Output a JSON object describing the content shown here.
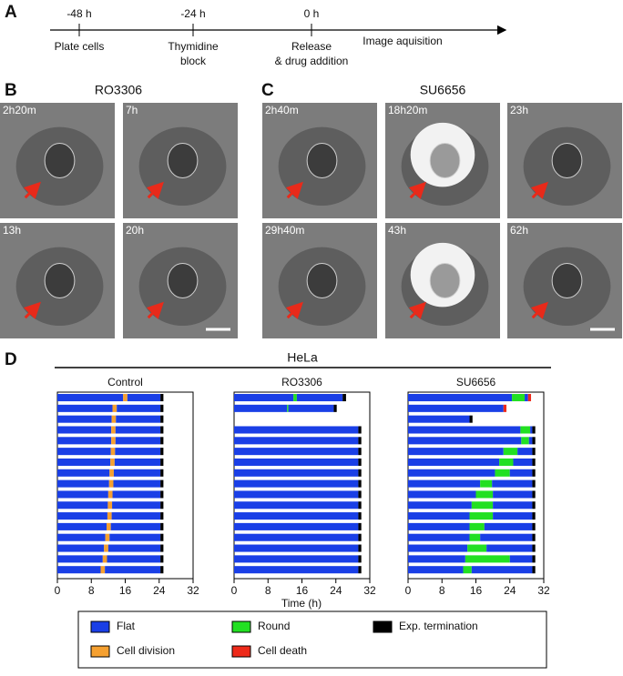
{
  "panel_labels": [
    "A",
    "B",
    "C",
    "D"
  ],
  "timeline": {
    "events": [
      {
        "time": "-48 h",
        "lines": [
          "Plate cells"
        ]
      },
      {
        "time": "-24 h",
        "lines": [
          "Thymidine",
          "block"
        ]
      },
      {
        "time": "0 h",
        "lines": [
          "Release",
          "& drug addition"
        ]
      }
    ],
    "end_label": "Image aquisition"
  },
  "panel_b": {
    "title": "RO3306",
    "frames": [
      "2h20m",
      "7h",
      "13h",
      "20h"
    ]
  },
  "panel_c": {
    "title": "SU6656",
    "frames": [
      "2h40m",
      "18h20m",
      "23h",
      "29h40m",
      "43h",
      "62h"
    ]
  },
  "chart_data": {
    "type": "timeline",
    "group": "HeLa",
    "xlabel": "Time (h)",
    "xlim": [
      0,
      32
    ],
    "xticks": [
      0,
      8,
      16,
      24,
      32
    ],
    "legend": [
      {
        "name": "Flat",
        "color": "#1a3fe6"
      },
      {
        "name": "Round",
        "color": "#22e022"
      },
      {
        "name": "Exp. termination",
        "color": "#000000"
      },
      {
        "name": "Cell division",
        "color": "#f5a030"
      },
      {
        "name": "Cell death",
        "color": "#ee2a1a"
      }
    ],
    "panels": [
      {
        "title": "Control",
        "rows": [
          [
            [
              0,
              15.5
            ],
            [
              3,
              1
            ],
            [
              0,
              7.8
            ],
            [
              2,
              0.7
            ]
          ],
          [
            [
              0,
              13.0
            ],
            [
              3,
              1
            ],
            [
              0,
              10.3
            ],
            [
              2,
              0.7
            ]
          ],
          [
            [
              0,
              12.8
            ],
            [
              3,
              1
            ],
            [
              0,
              10.5
            ],
            [
              2,
              0.7
            ]
          ],
          [
            [
              0,
              12.7
            ],
            [
              3,
              1
            ],
            [
              0,
              10.6
            ],
            [
              2,
              0.7
            ]
          ],
          [
            [
              0,
              12.7
            ],
            [
              3,
              1
            ],
            [
              0,
              10.6
            ],
            [
              2,
              0.7
            ]
          ],
          [
            [
              0,
              12.6
            ],
            [
              3,
              1
            ],
            [
              0,
              10.7
            ],
            [
              2,
              0.7
            ]
          ],
          [
            [
              0,
              12.5
            ],
            [
              3,
              1
            ],
            [
              0,
              10.8
            ],
            [
              2,
              0.7
            ]
          ],
          [
            [
              0,
              12.3
            ],
            [
              3,
              1
            ],
            [
              0,
              11
            ],
            [
              2,
              0.7
            ]
          ],
          [
            [
              0,
              12.2
            ],
            [
              3,
              1
            ],
            [
              0,
              11.1
            ],
            [
              2,
              0.7
            ]
          ],
          [
            [
              0,
              12.0
            ],
            [
              3,
              1
            ],
            [
              0,
              11.3
            ],
            [
              2,
              0.7
            ]
          ],
          [
            [
              0,
              11.9
            ],
            [
              3,
              1
            ],
            [
              0,
              11.4
            ],
            [
              2,
              0.7
            ]
          ],
          [
            [
              0,
              11.8
            ],
            [
              3,
              1
            ],
            [
              0,
              11.5
            ],
            [
              2,
              0.7
            ]
          ],
          [
            [
              0,
              11.6
            ],
            [
              3,
              1
            ],
            [
              0,
              11.7
            ],
            [
              2,
              0.7
            ]
          ],
          [
            [
              0,
              11.3
            ],
            [
              3,
              1
            ],
            [
              0,
              12
            ],
            [
              2,
              0.7
            ]
          ],
          [
            [
              0,
              11.0
            ],
            [
              3,
              1
            ],
            [
              0,
              12.3
            ],
            [
              2,
              0.7
            ]
          ],
          [
            [
              0,
              10.7
            ],
            [
              3,
              1
            ],
            [
              0,
              12.6
            ],
            [
              2,
              0.7
            ]
          ],
          [
            [
              0,
              10.2
            ],
            [
              3,
              1
            ],
            [
              0,
              13.1
            ],
            [
              2,
              0.7
            ]
          ]
        ]
      },
      {
        "title": "RO3306",
        "rows": [
          [
            [
              0,
              14
            ],
            [
              1,
              0.8
            ],
            [
              0,
              10.8
            ],
            [
              2,
              0.8
            ]
          ],
          [
            [
              0,
              12.5
            ],
            [
              1,
              0.3
            ],
            [
              0,
              10.7
            ],
            [
              2,
              0.7
            ]
          ],
          [],
          [
            [
              0,
              29.3
            ],
            [
              2,
              0.7
            ]
          ],
          [
            [
              0,
              29.3
            ],
            [
              2,
              0.7
            ]
          ],
          [
            [
              0,
              29.3
            ],
            [
              2,
              0.7
            ]
          ],
          [
            [
              0,
              29.3
            ],
            [
              2,
              0.7
            ]
          ],
          [
            [
              0,
              29.3
            ],
            [
              2,
              0.7
            ]
          ],
          [
            [
              0,
              29.3
            ],
            [
              2,
              0.7
            ]
          ],
          [
            [
              0,
              29.3
            ],
            [
              2,
              0.7
            ]
          ],
          [
            [
              0,
              29.3
            ],
            [
              2,
              0.7
            ]
          ],
          [
            [
              0,
              29.3
            ],
            [
              2,
              0.7
            ]
          ],
          [
            [
              0,
              29.3
            ],
            [
              2,
              0.7
            ]
          ],
          [
            [
              0,
              29.3
            ],
            [
              2,
              0.7
            ]
          ],
          [
            [
              0,
              29.3
            ],
            [
              2,
              0.7
            ]
          ],
          [
            [
              0,
              29.3
            ],
            [
              2,
              0.7
            ]
          ],
          [
            [
              0,
              29.3
            ],
            [
              2,
              0.7
            ]
          ]
        ]
      },
      {
        "title": "SU6656",
        "rows": [
          [
            [
              0,
              24.5
            ],
            [
              1,
              3
            ],
            [
              0,
              0.8
            ],
            [
              4,
              0.7
            ]
          ],
          [
            [
              0,
              22.5
            ],
            [
              4,
              0.7
            ]
          ],
          [
            [
              0,
              14.5
            ],
            [
              2,
              0.7
            ]
          ],
          [
            [
              0,
              26.5
            ],
            [
              1,
              2.3
            ],
            [
              0,
              0.5
            ],
            [
              2,
              0.7
            ]
          ],
          [
            [
              0,
              26.7
            ],
            [
              1,
              1.8
            ],
            [
              0,
              0.8
            ],
            [
              2,
              0.7
            ]
          ],
          [
            [
              0,
              22.5
            ],
            [
              1,
              3.3
            ],
            [
              0,
              3.5
            ],
            [
              2,
              0.7
            ]
          ],
          [
            [
              0,
              21.5
            ],
            [
              1,
              3.3
            ],
            [
              0,
              4.5
            ],
            [
              2,
              0.7
            ]
          ],
          [
            [
              0,
              20.5
            ],
            [
              1,
              3.5
            ],
            [
              0,
              5.3
            ],
            [
              2,
              0.7
            ]
          ],
          [
            [
              0,
              17
            ],
            [
              1,
              2.8
            ],
            [
              0,
              9.5
            ],
            [
              2,
              0.7
            ]
          ],
          [
            [
              0,
              16
            ],
            [
              1,
              4
            ],
            [
              0,
              9.3
            ],
            [
              2,
              0.7
            ]
          ],
          [
            [
              0,
              15
            ],
            [
              1,
              5
            ],
            [
              0,
              9.3
            ],
            [
              2,
              0.7
            ]
          ],
          [
            [
              0,
              14.5
            ],
            [
              1,
              5.5
            ],
            [
              0,
              9.3
            ],
            [
              2,
              0.7
            ]
          ],
          [
            [
              0,
              14.5
            ],
            [
              1,
              3.5
            ],
            [
              0,
              11.3
            ],
            [
              2,
              0.7
            ]
          ],
          [
            [
              0,
              14.5
            ],
            [
              1,
              2.5
            ],
            [
              0,
              12.3
            ],
            [
              2,
              0.7
            ]
          ],
          [
            [
              0,
              14
            ],
            [
              1,
              4.5
            ],
            [
              0,
              10.8
            ],
            [
              2,
              0.7
            ]
          ],
          [
            [
              0,
              13.5
            ],
            [
              1,
              10.5
            ],
            [
              0,
              5.3
            ],
            [
              2,
              0.7
            ]
          ],
          [
            [
              0,
              13
            ],
            [
              1,
              2
            ],
            [
              0,
              14.3
            ],
            [
              2,
              0.7
            ]
          ]
        ]
      }
    ]
  }
}
